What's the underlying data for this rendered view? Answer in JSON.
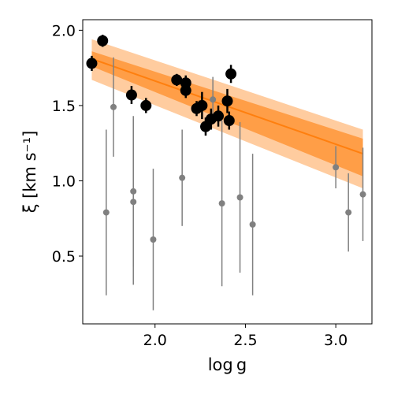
{
  "chart_data": {
    "type": "scatter",
    "title": "",
    "xlabel": "log g",
    "ylabel": "ξ [km s⁻¹]",
    "xlim": [
      1.6,
      3.2
    ],
    "ylim": [
      0.05,
      2.07
    ],
    "x_ticks": [
      2.0,
      2.5,
      3.0
    ],
    "x_tick_labels": [
      "2.0",
      "2.5",
      "3.0"
    ],
    "y_ticks": [
      0.5,
      1.0,
      1.5,
      2.0
    ],
    "y_tick_labels": [
      "0.5",
      "1.0",
      "1.5",
      "2.0"
    ],
    "grid": false,
    "legend": false,
    "colors": {
      "black_points": "#000000",
      "gray_points": "#808080",
      "fit_line": "#ff7f0e",
      "inner_band": "#ff7f0e",
      "outer_band": "#ff7f0e"
    },
    "fit": {
      "x": [
        1.65,
        3.15
      ],
      "line": [
        1.81,
        1.18
      ],
      "inner_lower": [
        1.76,
        1.03
      ],
      "inner_upper": [
        1.86,
        1.28
      ],
      "outer_lower": [
        1.67,
        0.95
      ],
      "outer_upper": [
        1.94,
        1.34
      ]
    },
    "series": [
      {
        "points": [
          {
            "x": 1.65,
            "y": 1.78,
            "err": 0.05
          },
          {
            "x": 1.71,
            "y": 1.93,
            "err": 0.04
          },
          {
            "x": 1.87,
            "y": 1.57,
            "err": 0.06
          },
          {
            "x": 1.95,
            "y": 1.5,
            "err": 0.05
          },
          {
            "x": 2.12,
            "y": 1.67,
            "err": 0.04
          },
          {
            "x": 2.17,
            "y": 1.65,
            "err": 0.05
          },
          {
            "x": 2.17,
            "y": 1.6,
            "err": 0.05
          },
          {
            "x": 2.23,
            "y": 1.48,
            "err": 0.05
          },
          {
            "x": 2.26,
            "y": 1.5,
            "err": 0.09
          },
          {
            "x": 2.28,
            "y": 1.36,
            "err": 0.06
          },
          {
            "x": 2.31,
            "y": 1.41,
            "err": 0.07
          },
          {
            "x": 2.35,
            "y": 1.43,
            "err": 0.07
          },
          {
            "x": 2.4,
            "y": 1.53,
            "err": 0.08
          },
          {
            "x": 2.41,
            "y": 1.4,
            "err": 0.06
          },
          {
            "x": 2.42,
            "y": 1.71,
            "err": 0.06
          }
        ]
      },
      {
        "points": [
          {
            "x": 1.73,
            "y": 0.79,
            "err": 0.55
          },
          {
            "x": 1.77,
            "y": 1.49,
            "err": 0.33
          },
          {
            "x": 1.88,
            "y": 0.86,
            "err": 0.55
          },
          {
            "x": 1.88,
            "y": 0.93,
            "err": 0.5
          },
          {
            "x": 1.99,
            "y": 0.61,
            "err": 0.47
          },
          {
            "x": 2.15,
            "y": 1.02,
            "err": 0.32
          },
          {
            "x": 2.32,
            "y": 1.54,
            "err": 0.15
          },
          {
            "x": 2.37,
            "y": 0.85,
            "err": 0.55
          },
          {
            "x": 2.47,
            "y": 0.89,
            "err": 0.5
          },
          {
            "x": 2.54,
            "y": 0.71,
            "err": 0.47
          },
          {
            "x": 3.0,
            "y": 1.09,
            "err": 0.14
          },
          {
            "x": 3.07,
            "y": 0.79,
            "err": 0.26
          },
          {
            "x": 3.15,
            "y": 0.91,
            "err": 0.31
          }
        ]
      }
    ]
  }
}
